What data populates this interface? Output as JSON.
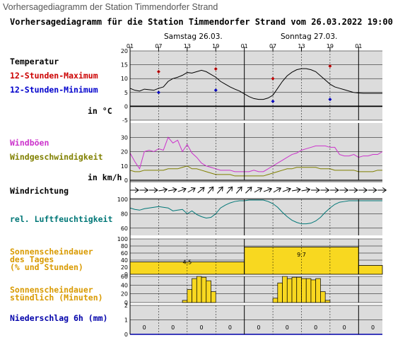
{
  "caption": "Vorhersagediagramm der Station Timmendorfer Strand",
  "chart_data": {
    "type": "line",
    "title": "Vorhersagediagramm für die Station Timmendorfer Strand vom 26.03.2022 19:00",
    "days": [
      "Samstag 26.03.",
      "Sonntag 27.03."
    ],
    "hour_ticks": [
      "01",
      "07",
      "13",
      "19",
      "01",
      "07",
      "13",
      "19",
      "01"
    ],
    "hour_offsets": [
      0,
      6,
      12,
      18,
      24,
      30,
      36,
      42,
      48
    ],
    "hours_range": [
      0,
      53
    ],
    "colors": {
      "max": "#cc0000",
      "min": "#0000cc",
      "temp": "#000000",
      "gust": "#cc33cc",
      "wind": "#808000",
      "humidity": "#007777",
      "sun": "#f8d820",
      "precip": "#0000aa",
      "grid_bg": "#dcdcdc"
    },
    "panels": [
      {
        "key": "temperature",
        "labels": [
          "Temperatur",
          "12-Stunden-Maximum",
          "12-Stunden-Minimum",
          "in °C"
        ],
        "yticks": [
          "20",
          "15",
          "10",
          "5",
          "0",
          "-5"
        ],
        "ylim": [
          -5,
          20
        ],
        "series": [
          {
            "hours": [
              0,
              1,
              2,
              3,
              4,
              5,
              6,
              7,
              8,
              9,
              10,
              11,
              12,
              13,
              14,
              15,
              16,
              17,
              18,
              19,
              20,
              21,
              22,
              23,
              24,
              25,
              26,
              27,
              28,
              29,
              30,
              31,
              32,
              33,
              34,
              35,
              36,
              37,
              38,
              39,
              40,
              41,
              42,
              43,
              44,
              45,
              46,
              47,
              48,
              49,
              50,
              51,
              52,
              53
            ],
            "values": [
              6.5,
              5.8,
              5.5,
              6.2,
              6.0,
              5.8,
              6.5,
              7.0,
              9.0,
              10.0,
              10.5,
              11.2,
              12.2,
              12.0,
              12.5,
              13.0,
              12.5,
              11.5,
              10.5,
              9.0,
              8.0,
              7.0,
              6.2,
              5.5,
              4.5,
              3.5,
              2.8,
              2.5,
              2.5,
              3.0,
              4.0,
              6.5,
              9.0,
              11.0,
              12.3,
              13.2,
              13.6,
              13.6,
              13.2,
              12.5,
              11.0,
              9.5,
              8.0,
              7.0,
              6.5,
              6.0,
              5.5,
              5.0,
              4.8,
              4.7,
              4.7,
              4.7,
              4.7,
              4.7
            ]
          }
        ],
        "markers": [
          {
            "name": "12-Stunden-Maximum",
            "hours": [
              6,
              18,
              30,
              42
            ],
            "values": [
              12.5,
              13.5,
              10.0,
              14.5
            ]
          },
          {
            "name": "12-Stunden-Minimum",
            "hours": [
              6,
              18,
              30,
              42
            ],
            "values": [
              5.0,
              5.8,
              1.8,
              2.5
            ]
          }
        ]
      },
      {
        "key": "wind",
        "labels": [
          "Windböen",
          "Windgeschwindigkeit",
          "in km/h"
        ],
        "yticks": [
          "30",
          "20",
          "10",
          "0"
        ],
        "ylim": [
          0,
          40
        ],
        "series": [
          {
            "name": "Windböen",
            "hours": [
              0,
              1,
              2,
              3,
              4,
              5,
              6,
              7,
              8,
              9,
              10,
              11,
              12,
              13,
              14,
              15,
              16,
              17,
              18,
              19,
              20,
              21,
              22,
              23,
              24,
              25,
              26,
              27,
              28,
              29,
              30,
              31,
              32,
              33,
              34,
              35,
              36,
              37,
              38,
              39,
              40,
              41,
              42,
              43,
              44,
              45,
              46,
              47,
              48,
              49,
              50,
              51,
              52,
              53
            ],
            "values": [
              19,
              13,
              8,
              20,
              21,
              20,
              22,
              21,
              30,
              26,
              28,
              20,
              25,
              19,
              16,
              12,
              10,
              9,
              8,
              7,
              7,
              7,
              6,
              6,
              6,
              6,
              7,
              6,
              6,
              8,
              10,
              12,
              14,
              16,
              18,
              19,
              21,
              22,
              23,
              24,
              24,
              24,
              23,
              23,
              18,
              17,
              17,
              18,
              16,
              17,
              17,
              18,
              18,
              20
            ]
          },
          {
            "name": "Windgeschwindigkeit",
            "hours": [
              0,
              1,
              2,
              3,
              4,
              5,
              6,
              7,
              8,
              9,
              10,
              11,
              12,
              13,
              14,
              15,
              16,
              17,
              18,
              19,
              20,
              21,
              22,
              23,
              24,
              25,
              26,
              27,
              28,
              29,
              30,
              31,
              32,
              33,
              34,
              35,
              36,
              37,
              38,
              39,
              40,
              41,
              42,
              43,
              44,
              45,
              46,
              47,
              48,
              49,
              50,
              51,
              52,
              53
            ],
            "values": [
              7,
              6,
              6,
              7,
              7,
              7,
              7,
              7,
              8,
              8,
              8,
              9,
              10,
              8,
              8,
              7,
              6,
              5,
              4,
              4,
              4,
              4,
              3,
              3,
              3,
              3,
              3,
              3,
              3,
              4,
              5,
              6,
              7,
              8,
              8,
              9,
              9,
              9,
              9,
              9,
              8,
              8,
              8,
              7,
              7,
              7,
              7,
              7,
              6,
              6,
              6,
              6,
              7,
              7
            ]
          }
        ]
      },
      {
        "key": "wind_direction",
        "labels": [
          "Windrichtung"
        ],
        "arrow_hours": [
          0,
          2,
          4,
          6,
          8,
          10,
          12,
          14,
          16,
          18,
          20,
          22,
          24,
          26,
          28,
          30,
          32,
          34,
          36,
          38,
          40,
          42,
          44,
          46,
          48,
          50,
          52
        ],
        "arrow_degrees": [
          90,
          90,
          90,
          80,
          80,
          70,
          60,
          50,
          40,
          40,
          40,
          40,
          45,
          60,
          70,
          60,
          70,
          80,
          80,
          90,
          90,
          90,
          90,
          90,
          90,
          90,
          90
        ]
      },
      {
        "key": "humidity",
        "labels": [
          "rel. Luftfeuchtigkeit"
        ],
        "yticks": [
          "100",
          "80",
          "60"
        ],
        "ylim": [
          50,
          100
        ],
        "series": [
          {
            "hours": [
              0,
              1,
              2,
              3,
              4,
              5,
              6,
              7,
              8,
              9,
              10,
              11,
              12,
              13,
              14,
              15,
              16,
              17,
              18,
              19,
              20,
              21,
              22,
              23,
              24,
              25,
              26,
              27,
              28,
              29,
              30,
              31,
              32,
              33,
              34,
              35,
              36,
              37,
              38,
              39,
              40,
              41,
              42,
              43,
              44,
              45,
              46,
              47,
              48,
              49,
              50,
              51,
              52,
              53
            ],
            "values": [
              88,
              86,
              85,
              87,
              88,
              89,
              90,
              89,
              88,
              84,
              85,
              86,
              80,
              84,
              79,
              76,
              74,
              75,
              80,
              88,
              92,
              95,
              97,
              98,
              98,
              99,
              99,
              99,
              99,
              97,
              94,
              89,
              82,
              76,
              71,
              68,
              66,
              66,
              67,
              70,
              75,
              82,
              88,
              93,
              96,
              97,
              98,
              98,
              98,
              98,
              98,
              98,
              98,
              98
            ]
          }
        ]
      },
      {
        "key": "sunshine_daily",
        "labels": [
          "Sonnenscheindauer",
          "des Tages",
          "(% und Stunden)"
        ],
        "yticks": [
          "100",
          "80",
          "60",
          "40",
          "20",
          "0"
        ],
        "ylim": [
          0,
          100
        ],
        "bars": [
          {
            "from": 0,
            "to": 24,
            "percent": 35,
            "hours_label": "4.5"
          },
          {
            "from": 24,
            "to": 48,
            "percent": 77,
            "hours_label": "9.7"
          },
          {
            "from": 48,
            "to": 53,
            "percent": 25,
            "hours_label": ""
          }
        ]
      },
      {
        "key": "sunshine_hourly",
        "labels": [
          "Sonnenscheindauer",
          "stündlich (Minuten)"
        ],
        "yticks": [
          "60",
          "40",
          "20",
          "0"
        ],
        "ylim": [
          0,
          60
        ],
        "hours": [
          11,
          12,
          13,
          14,
          15,
          16,
          17,
          30,
          31,
          32,
          33,
          34,
          35,
          36,
          37,
          38,
          39,
          40,
          41
        ],
        "values": [
          5,
          30,
          55,
          60,
          58,
          50,
          25,
          10,
          45,
          60,
          55,
          58,
          58,
          55,
          55,
          52,
          55,
          25,
          5
        ]
      },
      {
        "key": "precipitation",
        "labels": [
          "Niederschlag 6h (mm)"
        ],
        "yticks": [
          "2",
          "1",
          "0"
        ],
        "ylim": [
          0,
          2
        ],
        "hours": [
          3,
          9,
          15,
          21,
          27,
          33,
          39,
          45,
          51
        ],
        "values": [
          0,
          0,
          0,
          0,
          0,
          0,
          0,
          0,
          0
        ],
        "value_labels": [
          "0",
          "0",
          "0",
          "0",
          "0",
          "0",
          "0",
          "0",
          "0"
        ]
      }
    ]
  }
}
